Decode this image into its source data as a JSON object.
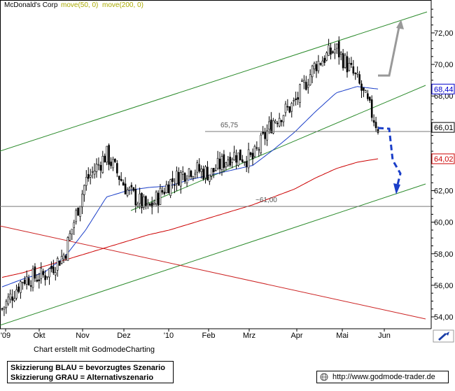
{
  "chart_data": {
    "type": "candlestick",
    "title": "McDonald's Corp",
    "legend": [
      {
        "label": "move(50, 0)",
        "color": "#0000cc"
      },
      {
        "label": "move(200, 0)",
        "color": "#cc0000"
      }
    ],
    "yticks": [
      "54,00",
      "56,00",
      "58,00",
      "60,00",
      "62,00",
      "64,00",
      "66,00",
      "68,00",
      "70,00",
      "72,00"
    ],
    "ylim": [
      53.5,
      73.5
    ],
    "xticks": [
      "'09",
      "Okt",
      "Nov",
      "Dez",
      "'10",
      "Feb",
      "Mrz",
      "Apr",
      "Mai",
      "Jun"
    ],
    "price_labels": [
      {
        "text": "68,44",
        "value": 68.44,
        "color": "#0000cc"
      },
      {
        "text": "66,01",
        "value": 66.01,
        "color": "#000000"
      },
      {
        "text": "64,02",
        "value": 64.02,
        "color": "#cc0000"
      }
    ],
    "annotations": [
      {
        "text": "65,75",
        "value": 65.75
      },
      {
        "text": "~61,00",
        "value": 61.0
      }
    ],
    "series": [
      {
        "name": "McDonald's Corp",
        "x": [
          "2009-09-01",
          "2009-09-15",
          "2009-10-01",
          "2009-10-15",
          "2009-11-01",
          "2009-11-15",
          "2009-12-01",
          "2009-12-15",
          "2010-01-01",
          "2010-01-15",
          "2010-02-01",
          "2010-02-15",
          "2010-03-01",
          "2010-03-15",
          "2010-04-01",
          "2010-04-15",
          "2010-05-01",
          "2010-05-15",
          "2010-05-25"
        ],
        "values": [
          54.5,
          56.4,
          56.6,
          58.0,
          62.6,
          64.3,
          62.0,
          60.8,
          62.5,
          63.4,
          63.1,
          64.3,
          64.0,
          66.5,
          67.5,
          70.0,
          71.0,
          69.0,
          66.0
        ]
      },
      {
        "name": "move(50, 0)",
        "values": [
          55.9,
          56.4,
          56.8,
          57.8,
          59.5,
          61.6,
          62.0,
          62.2,
          62.3,
          62.7,
          63.0,
          63.3,
          63.6,
          64.6,
          65.7,
          67.0,
          68.2,
          68.6,
          68.44
        ]
      },
      {
        "name": "move(200, 0)",
        "values": [
          56.5,
          56.8,
          57.2,
          57.6,
          58.0,
          58.4,
          58.8,
          59.2,
          59.5,
          59.9,
          60.3,
          60.7,
          61.1,
          61.6,
          62.1,
          62.8,
          63.4,
          63.8,
          64.02
        ]
      }
    ]
  },
  "footer": {
    "credit": "Chart erstellt mit GodmodeCharting",
    "legend_blue": "Skizzierung BLAU = bevorzugtes Szenario",
    "legend_grey": "Skizzierung GRAU = Alternativszenario",
    "url": "http://www.godmode-trader.de"
  }
}
